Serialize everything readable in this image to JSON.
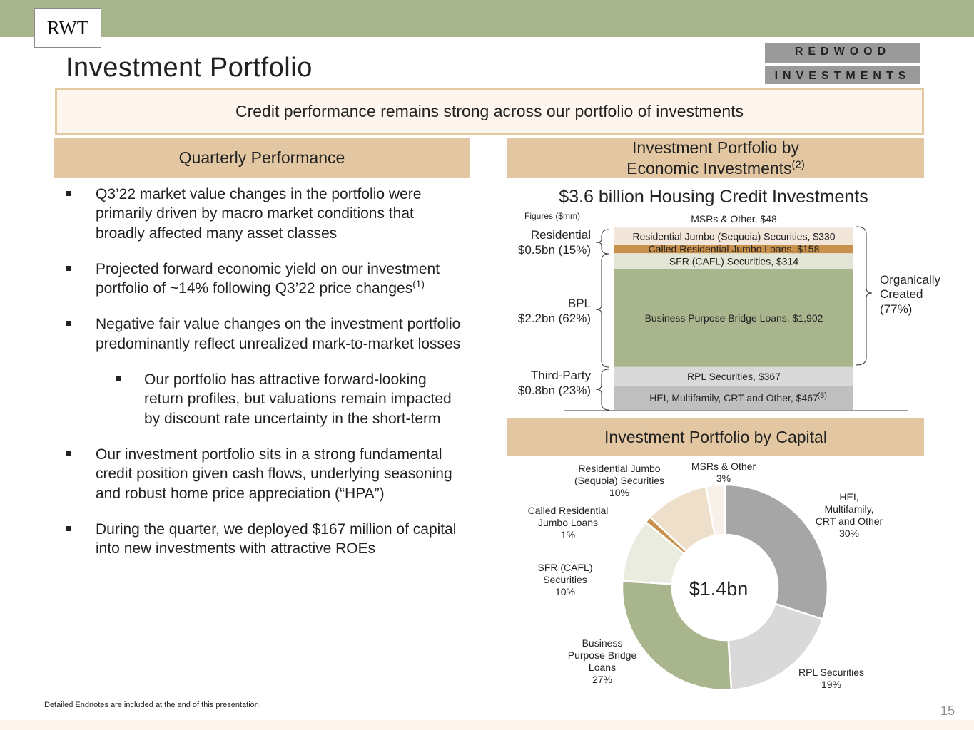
{
  "header": {
    "badge": "RWT",
    "title": "Investment Portfolio",
    "logo_line1": "REDWOOD",
    "logo_line2": "INVESTMENTS"
  },
  "banner": "Credit performance remains strong across our portfolio of investments",
  "left": {
    "header": "Quarterly Performance",
    "bullets": [
      {
        "text": "Q3’22 market value changes in the portfolio were primarily driven by macro market conditions that broadly affected many asset classes",
        "sup": ""
      },
      {
        "text": "Projected forward economic yield on our investment portfolio of ~14% following Q3’22 price changes",
        "sup": "(1)"
      },
      {
        "text": "Negative fair value changes on the investment portfolio predominantly reflect unrealized mark-to-market losses",
        "sup": ""
      },
      {
        "text": "Our portfolio has attractive forward-looking return profiles, but valuations remain impacted by discount rate uncertainty in the short-term",
        "sup": ""
      },
      {
        "text": "Our investment portfolio sits in a strong fundamental credit position given cash flows, underlying seasoning and robust home price appreciation (“HPA”)",
        "sup": ""
      },
      {
        "text": "During the quarter, we deployed $167 million of capital into new investments with attractive ROEs",
        "sup": ""
      }
    ]
  },
  "right": {
    "header_line1": "Investment Portfolio by",
    "header_line2": "Economic Investments",
    "header_sup": "(2)",
    "capital_header": "Investment Portfolio by Capital"
  },
  "footnote": "Detailed Endnotes are included at the end of this presentation.",
  "page_number": "15",
  "colors": {
    "topbar": "#a8b58d",
    "section": "#e2c7a2",
    "green": "#a8b58d",
    "light_green": "#e9ecdf",
    "tan": "#c8914e",
    "cream": "#eedfcb",
    "ivory": "#f7f1e9",
    "light_gray": "#d9d9d9",
    "gray": "#a6a6a6"
  },
  "chart_data": [
    {
      "type": "bar",
      "subtype": "stacked-single-column",
      "title": "$3.6 billion Housing Credit Investments",
      "units_note": "Figures ($mm)",
      "segments": [
        {
          "name": "HEI, Multifamily, CRT and Other",
          "value": 467,
          "label": "HEI, Multifamily, CRT and Other, $467",
          "note": "(3)",
          "color": "#bfbfbf"
        },
        {
          "name": "RPL Securities",
          "value": 367,
          "label": "RPL Securities, $367",
          "color": "#d9d9d9"
        },
        {
          "name": "Business Purpose Bridge Loans",
          "value": 1902,
          "label": "Business Purpose Bridge Loans, $1,902",
          "color": "#a8b58d"
        },
        {
          "name": "SFR (CAFL) Securities",
          "value": 314,
          "label": "SFR (CAFL) Securities, $314",
          "color": "#e3e6d6"
        },
        {
          "name": "Called Residential Jumbo Loans",
          "value": 158,
          "label": "Called Residential Jumbo Loans, $158",
          "color": "#c8914e"
        },
        {
          "name": "Residential Jumbo (Sequoia) Securities",
          "value": 330,
          "label": "Residential Jumbo (Sequoia) Securities, $330",
          "color": "#f2e6da"
        },
        {
          "name": "MSRs & Other",
          "value": 48,
          "label": "MSRs & Other, $48",
          "color": "#f7f1e9"
        }
      ],
      "left_groups": [
        {
          "line1": "Residential",
          "line2": "$0.5bn (15%)"
        },
        {
          "line1": "BPL",
          "line2": "$2.2bn (62%)"
        },
        {
          "line1": "Third-Party",
          "line2": "$0.8bn (23%)"
        }
      ],
      "right_group": {
        "line1": "Organically",
        "line2": "Created",
        "line3": "(77%)"
      }
    },
    {
      "type": "pie",
      "subtype": "donut",
      "center_label": "$1.4bn",
      "slices": [
        {
          "name": "HEI, Multifamily, CRT and Other",
          "value": 30,
          "label_lines": [
            "HEI,",
            "Multifamily,",
            "CRT and Other",
            "30%"
          ],
          "color": "#a6a6a6"
        },
        {
          "name": "RPL Securities",
          "value": 19,
          "label_lines": [
            "RPL Securities",
            "19%"
          ],
          "color": "#d9d9d9"
        },
        {
          "name": "Business Purpose Bridge Loans",
          "value": 27,
          "label_lines": [
            "Business",
            "Purpose Bridge",
            "Loans",
            "27%"
          ],
          "color": "#a8b58d"
        },
        {
          "name": "SFR (CAFL) Securities",
          "value": 10,
          "label_lines": [
            "SFR (CAFL)",
            "Securities",
            "10%"
          ],
          "color": "#e9ecdf"
        },
        {
          "name": "Called Residential Jumbo Loans",
          "value": 1,
          "label_lines": [
            "Called Residential",
            "Jumbo Loans",
            "1%"
          ],
          "color": "#c8914e"
        },
        {
          "name": "Residential Jumbo (Sequoia) Securities",
          "value": 10,
          "label_lines": [
            "Residential Jumbo",
            "(Sequoia) Securities",
            "10%"
          ],
          "color": "#eedfcb"
        },
        {
          "name": "MSRs & Other",
          "value": 3,
          "label_lines": [
            "MSRs & Other",
            "3%"
          ],
          "color": "#f7f1e9"
        }
      ]
    }
  ]
}
